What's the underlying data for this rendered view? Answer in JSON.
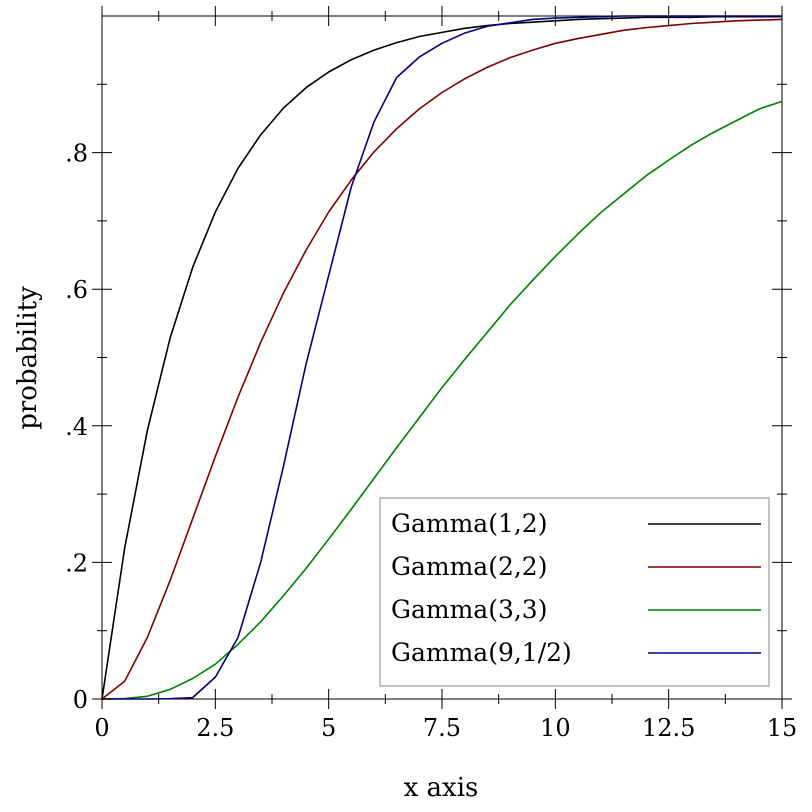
{
  "chart_data": {
    "type": "line",
    "title": "",
    "xlabel": "x axis",
    "ylabel": "probability",
    "xlim": [
      0,
      15
    ],
    "ylim": [
      0,
      1
    ],
    "x_ticks": [
      0,
      2.5,
      5,
      7.5,
      10,
      12.5,
      15
    ],
    "x_tick_labels": [
      "0",
      "2.5",
      "5",
      "7.5",
      "10",
      "12.5",
      "15"
    ],
    "y_ticks": [
      0,
      0.2,
      0.4,
      0.6,
      0.8
    ],
    "y_tick_labels": [
      "0",
      ".2",
      ".4",
      ".6",
      ".8"
    ],
    "grid": false,
    "legend_position": "bottom-right",
    "x": [
      0,
      0.5,
      1,
      1.5,
      2,
      2.5,
      3,
      3.5,
      4,
      4.5,
      5,
      5.5,
      6,
      6.5,
      7,
      7.5,
      8,
      8.5,
      9,
      9.5,
      10,
      10.5,
      11,
      11.5,
      12,
      12.5,
      13,
      13.5,
      14,
      14.5,
      15
    ],
    "series": [
      {
        "name": "Gamma(1,2)",
        "color": "#000000",
        "values": [
          0,
          0.221,
          0.393,
          0.528,
          0.632,
          0.713,
          0.777,
          0.826,
          0.865,
          0.895,
          0.918,
          0.936,
          0.95,
          0.961,
          0.97,
          0.976,
          0.982,
          0.986,
          0.989,
          0.991,
          0.993,
          0.995,
          0.996,
          0.997,
          0.998,
          0.998,
          0.998,
          0.999,
          0.999,
          0.999,
          0.999
        ]
      },
      {
        "name": "Gamma(2,2)",
        "color": "#800000",
        "values": [
          0,
          0.026,
          0.09,
          0.173,
          0.264,
          0.355,
          0.442,
          0.522,
          0.594,
          0.657,
          0.713,
          0.76,
          0.801,
          0.835,
          0.864,
          0.888,
          0.908,
          0.925,
          0.939,
          0.95,
          0.96,
          0.967,
          0.973,
          0.979,
          0.983,
          0.986,
          0.989,
          0.991,
          0.993,
          0.994,
          0.995
        ]
      },
      {
        "name": "Gamma(3,3)",
        "color": "#008000",
        "values": [
          0,
          0.0006,
          0.004,
          0.014,
          0.03,
          0.051,
          0.08,
          0.113,
          0.151,
          0.191,
          0.234,
          0.278,
          0.323,
          0.368,
          0.412,
          0.456,
          0.497,
          0.537,
          0.577,
          0.613,
          0.648,
          0.681,
          0.712,
          0.739,
          0.766,
          0.789,
          0.811,
          0.83,
          0.847,
          0.864,
          0.875
        ]
      },
      {
        "name": "Gamma(9,1/2)",
        "color": "#000080",
        "values": [
          0,
          0,
          0,
          0.0004,
          0.002,
          0.032,
          0.09,
          0.2,
          0.34,
          0.49,
          0.62,
          0.75,
          0.845,
          0.91,
          0.94,
          0.96,
          0.975,
          0.985,
          0.99,
          0.995,
          0.997,
          0.998,
          0.999,
          1,
          1,
          1,
          1,
          1,
          1,
          1,
          1
        ]
      }
    ]
  }
}
